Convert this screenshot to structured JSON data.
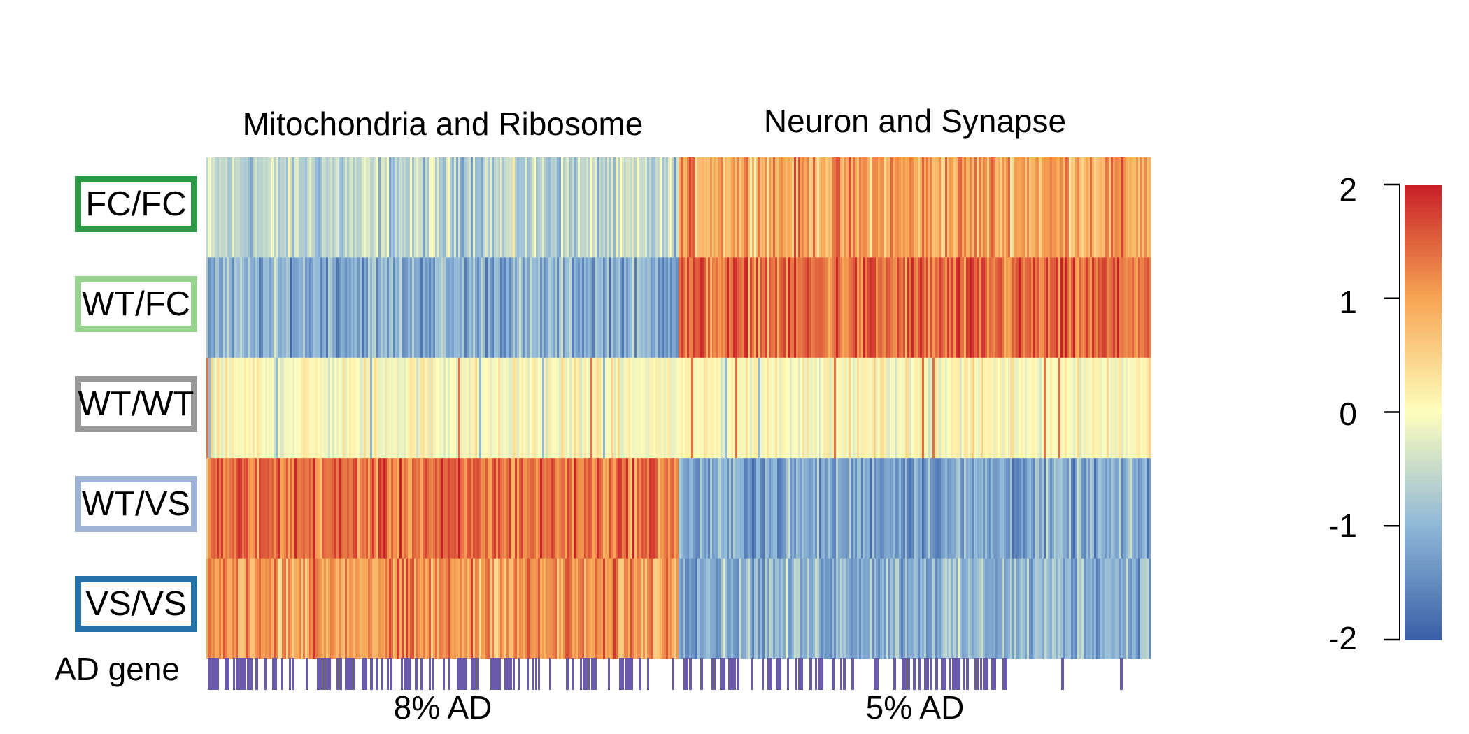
{
  "chart_data": {
    "type": "heatmap",
    "title": "",
    "row_labels": [
      "FC/FC",
      "WT/FC",
      "WT/WT",
      "WT/VS",
      "VS/VS"
    ],
    "row_border_colors": [
      "#2e9a48",
      "#98d48f",
      "#999999",
      "#9fb3d6",
      "#2472a8"
    ],
    "column_clusters": [
      {
        "name": "Mitochondria and Ribosome",
        "ad_percent_label": "8% AD"
      },
      {
        "name": "Neuron and Synapse",
        "ad_percent_label": "5% AD"
      }
    ],
    "row_means": [
      [
        -0.6,
        1.0
      ],
      [
        -1.1,
        1.4
      ],
      [
        0.0,
        0.05
      ],
      [
        1.4,
        -1.2
      ],
      [
        1.1,
        -1.0
      ]
    ],
    "annotation_track_label": "AD gene",
    "annotation_color": "#6a5aaa",
    "colorscale": {
      "min": -2,
      "max": 2,
      "ticks": [
        2,
        1,
        0,
        -1,
        -2
      ],
      "colors": [
        "#3a61a8",
        "#90b8d8",
        "#fefebd",
        "#f7a655",
        "#c92027"
      ]
    }
  }
}
